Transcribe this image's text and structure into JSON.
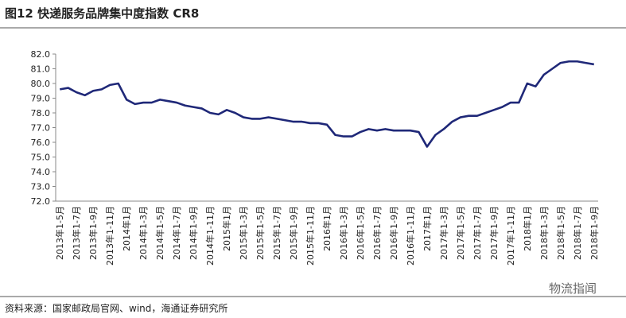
{
  "chart_data": {
    "type": "line",
    "title": "图12 快递服务品牌集中度指数 CR8",
    "source": "资料来源：国家邮政局官网、wind，海通证券研究所",
    "watermark": "物流指闻",
    "color": "#1f2878",
    "categories": [
      "2013年1-5月",
      null,
      "2013年1-7月",
      null,
      "2013年1-9月",
      null,
      "2013年1-11月",
      null,
      "2014年1月",
      null,
      "2014年1-3月",
      null,
      "2014年1-5月",
      null,
      "2014年1-7月",
      null,
      "2014年1-9月",
      null,
      "2014年1-11月",
      null,
      "2015年1月",
      null,
      "2015年1-3月",
      null,
      "2015年1-5月",
      null,
      "2015年1-7月",
      null,
      "2015年1-9月",
      null,
      "2015年1-11月",
      null,
      "2016年1月",
      null,
      "2016年1-3月",
      null,
      "2016年1-5月",
      null,
      "2016年1-7月",
      null,
      "2016年1-9月",
      null,
      "2016年1-11月",
      null,
      "2017年1月",
      null,
      "2017年1-3月",
      null,
      "2017年1-5月",
      null,
      "2017年1-7月",
      null,
      "2017年1-9月",
      null,
      "2017年1-11月",
      null,
      "2018年1月",
      null,
      "2018年1-3月",
      null,
      "2018年1-5月",
      null,
      "2018年1-7月",
      null,
      "2018年1-9月"
    ],
    "values": [
      79.6,
      79.7,
      79.4,
      79.2,
      79.5,
      79.6,
      79.9,
      80.0,
      78.9,
      78.6,
      78.7,
      78.7,
      78.9,
      78.8,
      78.7,
      78.5,
      78.4,
      78.3,
      78.0,
      77.9,
      78.2,
      78.0,
      77.7,
      77.6,
      77.6,
      77.7,
      77.6,
      77.5,
      77.4,
      77.4,
      77.3,
      77.3,
      77.2,
      76.5,
      76.4,
      76.4,
      76.7,
      76.9,
      76.8,
      76.9,
      76.8,
      76.8,
      76.8,
      76.7,
      75.7,
      76.5,
      76.9,
      77.4,
      77.7,
      77.8,
      77.8,
      78.0,
      78.2,
      78.4,
      78.7,
      78.7,
      80.0,
      79.8,
      80.6,
      81.0,
      81.4,
      81.5,
      81.5,
      81.4,
      81.3
    ],
    "ylim": [
      72,
      82
    ],
    "yticks": [
      {
        "value": 72,
        "label": "72.0"
      },
      {
        "value": 73,
        "label": "73.0"
      },
      {
        "value": 74,
        "label": "74.0"
      },
      {
        "value": 75,
        "label": "75.0"
      },
      {
        "value": 76,
        "label": "76.0"
      },
      {
        "value": 77,
        "label": "77.0"
      },
      {
        "value": 78,
        "label": "78.0"
      },
      {
        "value": 79,
        "label": "79.0"
      },
      {
        "value": 80,
        "label": "80.0"
      },
      {
        "value": 81,
        "label": "81.0"
      },
      {
        "value": 82,
        "label": "82.0"
      }
    ],
    "grid": false
  }
}
